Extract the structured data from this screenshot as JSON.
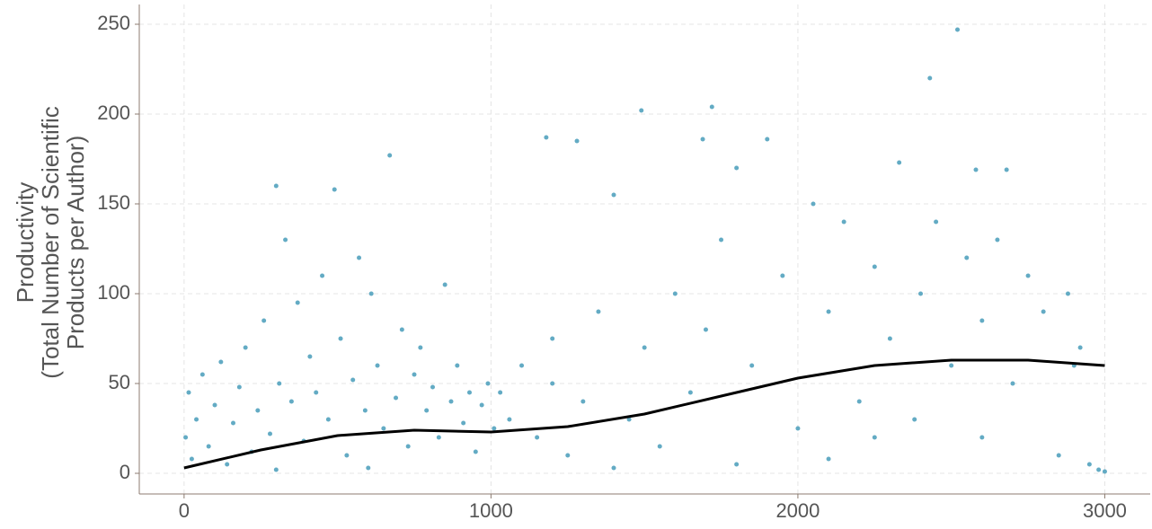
{
  "chart_data": {
    "type": "scatter",
    "ylabel": [
      "Productivity",
      "(Total Number of Scientific",
      "Products per Author)"
    ],
    "xlim": [
      -146,
      3148
    ],
    "ylim": [
      -11.5,
      261
    ],
    "xticks": [
      0,
      1000,
      2000,
      3000
    ],
    "yticks": [
      0,
      50,
      100,
      150,
      200,
      250
    ],
    "grid": true,
    "points": {
      "color": "#63abc4",
      "values": [
        [
          5,
          20
        ],
        [
          15,
          45
        ],
        [
          25,
          8
        ],
        [
          40,
          30
        ],
        [
          60,
          55
        ],
        [
          80,
          15
        ],
        [
          100,
          38
        ],
        [
          120,
          62
        ],
        [
          140,
          5
        ],
        [
          160,
          28
        ],
        [
          180,
          48
        ],
        [
          200,
          70
        ],
        [
          220,
          12
        ],
        [
          240,
          35
        ],
        [
          260,
          85
        ],
        [
          280,
          22
        ],
        [
          300,
          160
        ],
        [
          310,
          50
        ],
        [
          330,
          130
        ],
        [
          350,
          40
        ],
        [
          370,
          95
        ],
        [
          390,
          18
        ],
        [
          410,
          65
        ],
        [
          430,
          45
        ],
        [
          450,
          110
        ],
        [
          470,
          30
        ],
        [
          490,
          158
        ],
        [
          510,
          75
        ],
        [
          530,
          10
        ],
        [
          550,
          52
        ],
        [
          570,
          120
        ],
        [
          590,
          35
        ],
        [
          610,
          100
        ],
        [
          630,
          60
        ],
        [
          650,
          25
        ],
        [
          670,
          177
        ],
        [
          690,
          42
        ],
        [
          710,
          80
        ],
        [
          730,
          15
        ],
        [
          750,
          55
        ],
        [
          770,
          70
        ],
        [
          790,
          35
        ],
        [
          810,
          48
        ],
        [
          830,
          20
        ],
        [
          850,
          105
        ],
        [
          870,
          40
        ],
        [
          890,
          60
        ],
        [
          910,
          28
        ],
        [
          930,
          45
        ],
        [
          950,
          12
        ],
        [
          970,
          38
        ],
        [
          990,
          50
        ],
        [
          1010,
          25
        ],
        [
          1030,
          45
        ],
        [
          1060,
          30
        ],
        [
          1100,
          60
        ],
        [
          1150,
          20
        ],
        [
          1180,
          187
        ],
        [
          1200,
          75
        ],
        [
          1250,
          10
        ],
        [
          1280,
          185
        ],
        [
          1300,
          40
        ],
        [
          1350,
          90
        ],
        [
          1400,
          155
        ],
        [
          1450,
          30
        ],
        [
          1490,
          202
        ],
        [
          1500,
          70
        ],
        [
          1550,
          15
        ],
        [
          1600,
          100
        ],
        [
          1650,
          45
        ],
        [
          1690,
          186
        ],
        [
          1720,
          204
        ],
        [
          1750,
          130
        ],
        [
          1800,
          170
        ],
        [
          1850,
          60
        ],
        [
          1900,
          186
        ],
        [
          1950,
          110
        ],
        [
          2000,
          25
        ],
        [
          2050,
          150
        ],
        [
          2100,
          90
        ],
        [
          2150,
          140
        ],
        [
          2200,
          40
        ],
        [
          2250,
          115
        ],
        [
          2300,
          75
        ],
        [
          2330,
          173
        ],
        [
          2380,
          30
        ],
        [
          2400,
          100
        ],
        [
          2430,
          220
        ],
        [
          2450,
          140
        ],
        [
          2500,
          60
        ],
        [
          2520,
          247
        ],
        [
          2550,
          120
        ],
        [
          2580,
          169
        ],
        [
          2600,
          20
        ],
        [
          2650,
          130
        ],
        [
          2680,
          169
        ],
        [
          2700,
          50
        ],
        [
          2750,
          110
        ],
        [
          2800,
          90
        ],
        [
          2850,
          10
        ],
        [
          2880,
          100
        ],
        [
          2900,
          60
        ],
        [
          2920,
          70
        ],
        [
          2950,
          5
        ],
        [
          2980,
          2
        ],
        [
          3000,
          1
        ],
        [
          1800,
          5
        ],
        [
          2100,
          8
        ],
        [
          1400,
          3
        ],
        [
          600,
          3
        ],
        [
          300,
          2
        ],
        [
          1200,
          50
        ],
        [
          1700,
          80
        ],
        [
          2250,
          20
        ],
        [
          2600,
          85
        ]
      ]
    },
    "trend": {
      "color": "#000000",
      "x": [
        0,
        250,
        500,
        750,
        1000,
        1250,
        1500,
        1750,
        2000,
        2250,
        2500,
        2750,
        3000
      ],
      "y": [
        3,
        13,
        21,
        24,
        23,
        26,
        33,
        43,
        53,
        60,
        63,
        63,
        60
      ]
    }
  }
}
